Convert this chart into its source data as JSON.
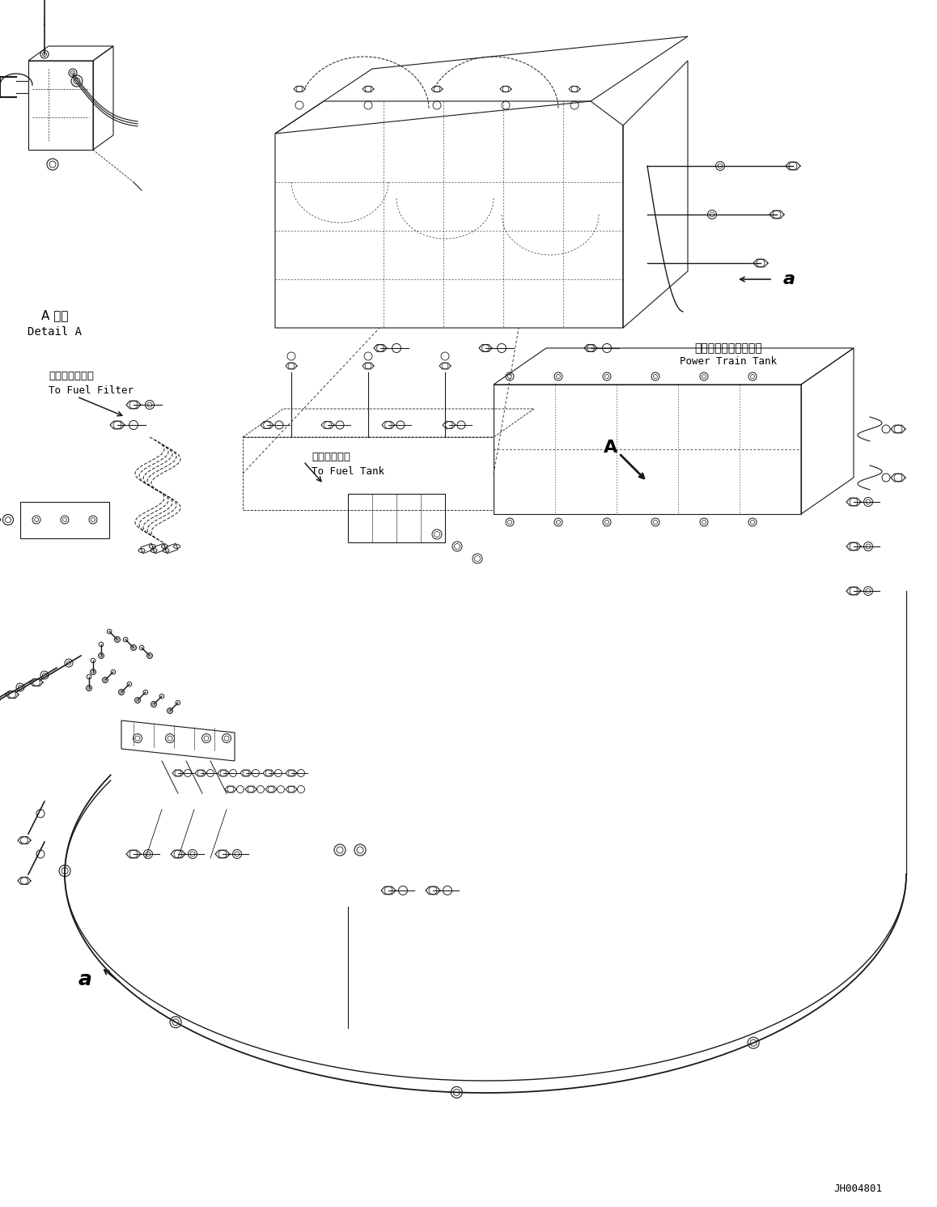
{
  "background_color": "#ffffff",
  "line_color": "#1a1a1a",
  "text_color": "#000000",
  "part_number": "JH004801",
  "figsize": [
    11.58,
    14.91
  ],
  "dpi": 100,
  "labels": {
    "detail_a_jp": "A 詳細",
    "detail_a_en": "Detail A",
    "fuel_filter_jp": "燃料フィルタへ",
    "fuel_filter_en": "To Fuel Filter",
    "fuel_tank_jp": "燃料タンクへ",
    "fuel_tank_en": "To Fuel Tank",
    "power_train_jp": "パワートレインタンク",
    "power_train_en": "Power Train Tank",
    "label_A": "A",
    "label_a": "a"
  }
}
